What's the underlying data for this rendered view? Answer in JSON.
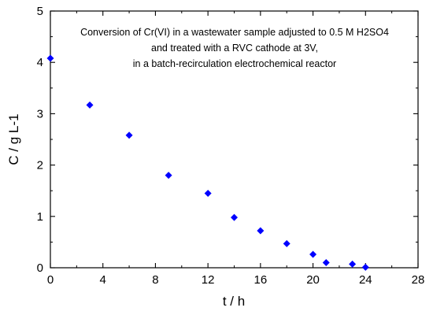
{
  "chart_data": {
    "type": "scatter",
    "title": "",
    "annotation": [
      "Conversion of Cr(VI) in a wastewater sample adjusted to 0.5 M H2SO4",
      "and treated with a RVC cathode at 3V,",
      "in a batch-recirculation electrochemical reactor"
    ],
    "xlabel": "t / h",
    "ylabel": "C / g L-1",
    "xlim": [
      0,
      28
    ],
    "ylim": [
      0,
      5
    ],
    "xticks": [
      "0",
      "4",
      "8",
      "12",
      "16",
      "20",
      "24",
      "28"
    ],
    "yticks": [
      "0",
      "1",
      "2",
      "3",
      "4",
      "5"
    ],
    "grid": false,
    "legend": "none",
    "series": [
      {
        "marker": "diamond",
        "color": "#0000ff",
        "points": [
          {
            "x": 0,
            "y": 4.08
          },
          {
            "x": 3,
            "y": 3.17
          },
          {
            "x": 6,
            "y": 2.58
          },
          {
            "x": 9,
            "y": 1.8
          },
          {
            "x": 12,
            "y": 1.45
          },
          {
            "x": 14,
            "y": 0.98
          },
          {
            "x": 16,
            "y": 0.72
          },
          {
            "x": 18,
            "y": 0.47
          },
          {
            "x": 20,
            "y": 0.26
          },
          {
            "x": 21,
            "y": 0.1
          },
          {
            "x": 23,
            "y": 0.07
          },
          {
            "x": 24,
            "y": 0.01
          }
        ]
      }
    ]
  }
}
